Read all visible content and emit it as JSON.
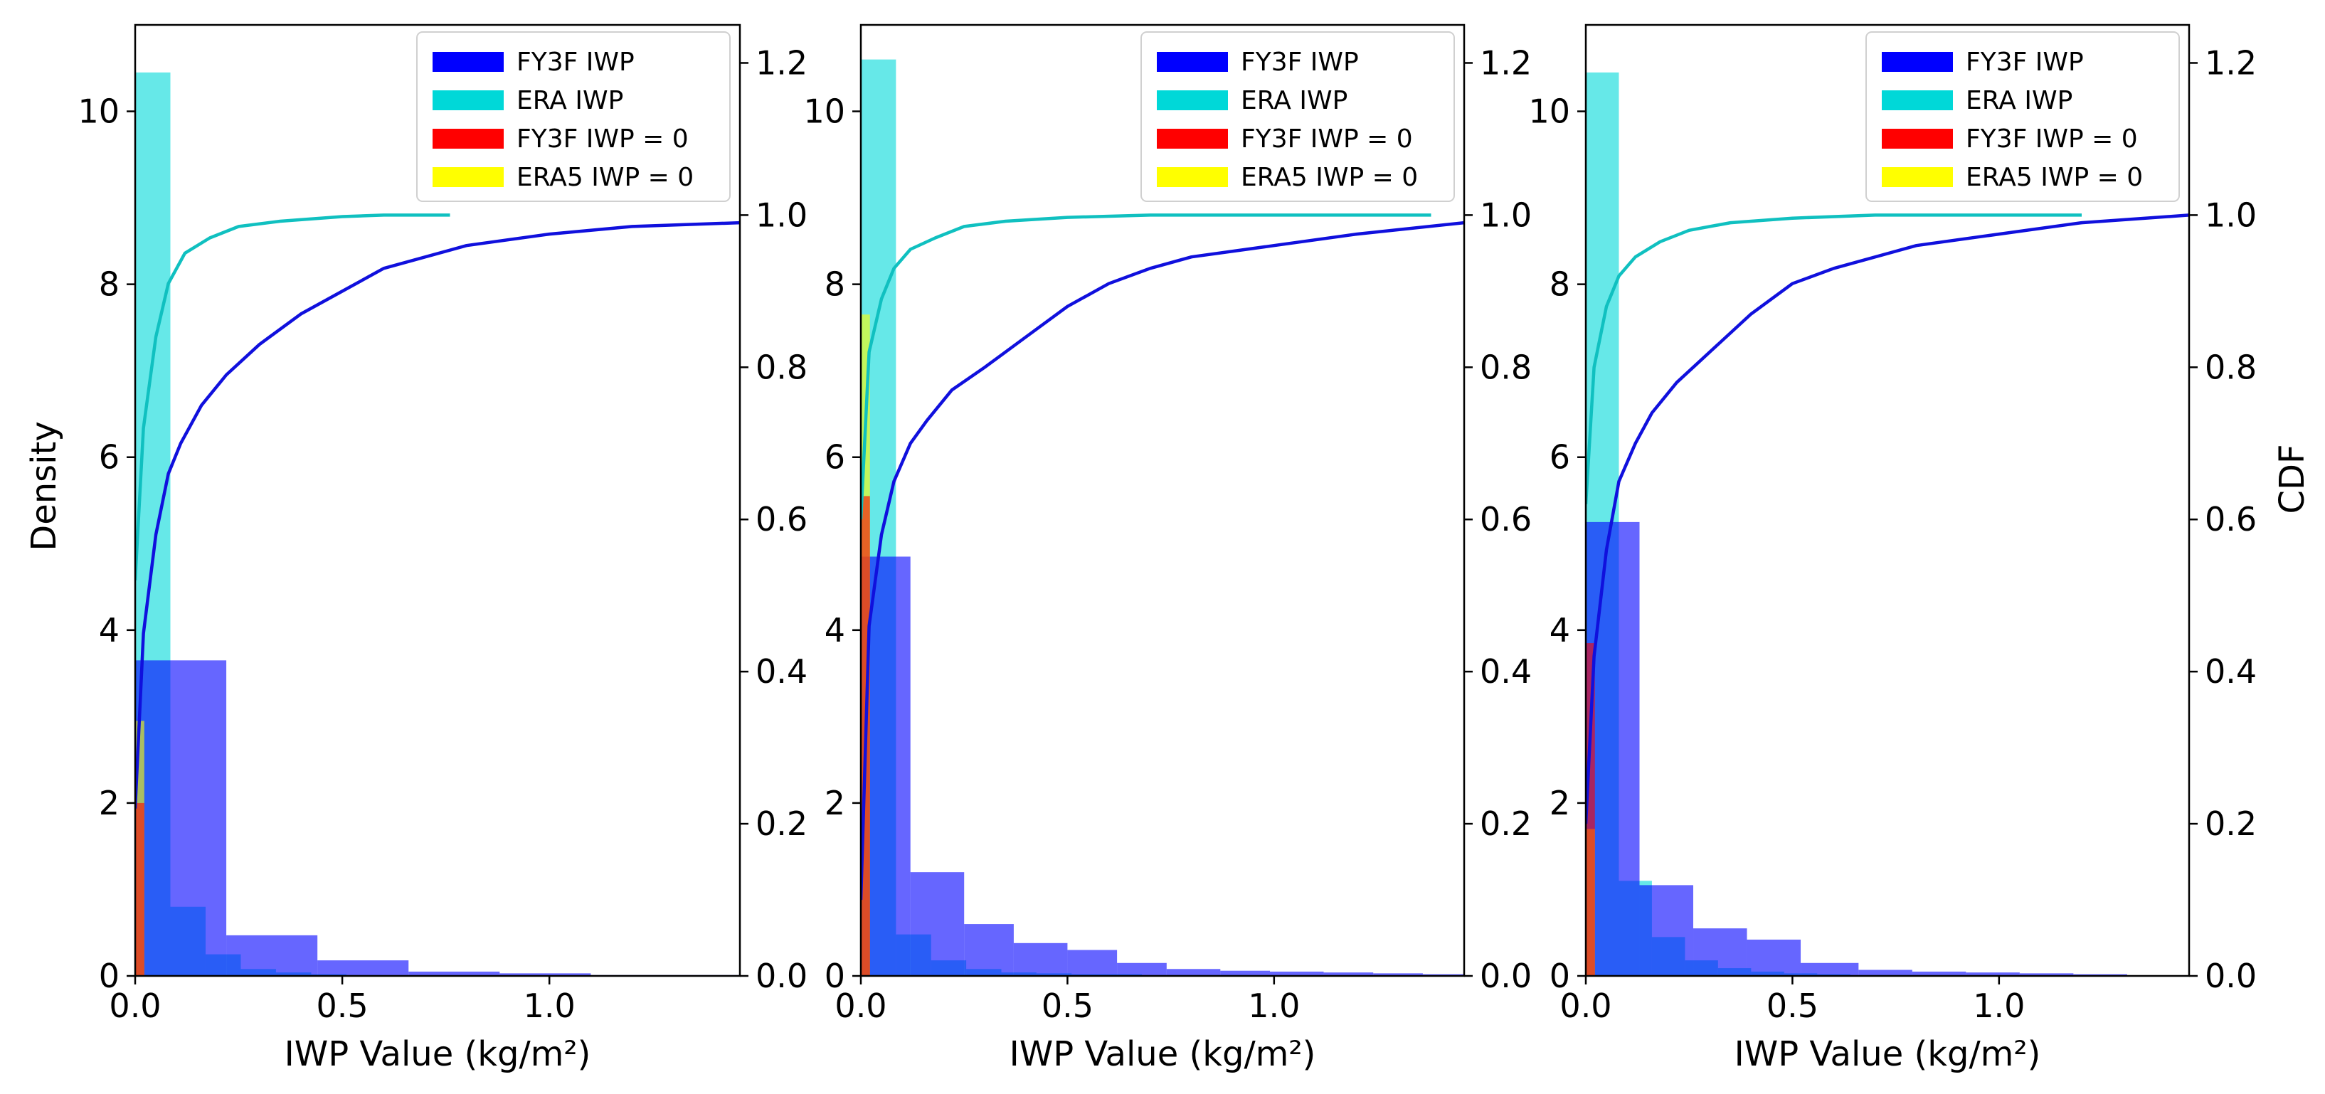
{
  "colors": {
    "fy3f": "#0000ff",
    "era": "#00d8d8",
    "fy3f_zero": "#ff0000",
    "era5_zero": "#ffff00",
    "fy3f_cdf": "#1010dd",
    "era_cdf": "#10c0c0"
  },
  "chart_data": [
    {
      "type": "bar",
      "title": "",
      "xlabel": "IWP Value (kg/m²)",
      "ylabel": "Density",
      "y2label": "",
      "xlim": [
        0,
        1.46
      ],
      "ylim": [
        0,
        11.0
      ],
      "y2lim": [
        0,
        1.25
      ],
      "xticks": [
        "0.0",
        "0.5",
        "1.0"
      ],
      "yticks": [
        "0",
        "2",
        "4",
        "6",
        "8",
        "10"
      ],
      "y2ticks": [
        "0.0",
        "0.2",
        "0.4",
        "0.6",
        "0.8",
        "1.0",
        "1.2"
      ],
      "legend": {
        "position": "top-right",
        "entries": [
          "FY3F IWP",
          "ERA IWP",
          "FY3F IWP = 0",
          "ERA5 IWP = 0"
        ]
      },
      "series": [
        {
          "name": "FY3F IWP",
          "kind": "histogram",
          "edges": [
            0.0,
            0.22,
            0.44,
            0.66,
            0.88,
            1.1,
            1.32,
            1.46
          ],
          "values": [
            3.65,
            0.47,
            0.18,
            0.05,
            0.03,
            0.01,
            0.01
          ]
        },
        {
          "name": "ERA IWP",
          "kind": "histogram",
          "edges": [
            0.0,
            0.085,
            0.17,
            0.255,
            0.34,
            0.425,
            0.51,
            0.595,
            0.68,
            0.765
          ],
          "values": [
            10.45,
            0.8,
            0.25,
            0.08,
            0.04,
            0.02,
            0.01,
            0.0,
            0.0
          ]
        },
        {
          "name": "FY3F IWP = 0",
          "kind": "zero-bar",
          "width": 0.022,
          "value": 2.0
        },
        {
          "name": "ERA5 IWP = 0",
          "kind": "zero-bar",
          "width": 0.022,
          "value": 2.95
        },
        {
          "name": "FY3F CDF",
          "kind": "cdf",
          "x": [
            0.0,
            0.02,
            0.05,
            0.08,
            0.11,
            0.16,
            0.22,
            0.3,
            0.4,
            0.5,
            0.6,
            0.8,
            1.0,
            1.2,
            1.46
          ],
          "y": [
            0.22,
            0.45,
            0.58,
            0.66,
            0.7,
            0.75,
            0.79,
            0.83,
            0.87,
            0.9,
            0.93,
            0.96,
            0.975,
            0.985,
            0.99
          ]
        },
        {
          "name": "ERA CDF",
          "kind": "cdf",
          "x": [
            0.0,
            0.02,
            0.05,
            0.08,
            0.12,
            0.18,
            0.25,
            0.35,
            0.5,
            0.6,
            0.76
          ],
          "y": [
            0.52,
            0.72,
            0.84,
            0.91,
            0.95,
            0.97,
            0.985,
            0.992,
            0.998,
            1.0,
            1.0
          ]
        }
      ]
    },
    {
      "type": "bar",
      "title": "",
      "xlabel": "IWP Value (kg/m²)",
      "ylabel": "",
      "y2label": "",
      "xlim": [
        0,
        1.46
      ],
      "ylim": [
        0,
        11.0
      ],
      "y2lim": [
        0,
        1.25
      ],
      "xticks": [
        "0.0",
        "0.5",
        "1.0"
      ],
      "yticks": [
        "0",
        "2",
        "4",
        "6",
        "8",
        "10"
      ],
      "y2ticks": [
        "0.0",
        "0.2",
        "0.4",
        "0.6",
        "0.8",
        "1.0",
        "1.2"
      ],
      "legend": {
        "position": "top-right",
        "entries": [
          "FY3F IWP",
          "ERA IWP",
          "FY3F IWP = 0",
          "ERA5 IWP = 0"
        ]
      },
      "series": [
        {
          "name": "FY3F IWP",
          "kind": "histogram",
          "edges": [
            0.0,
            0.12,
            0.25,
            0.37,
            0.5,
            0.62,
            0.74,
            0.87,
            0.99,
            1.12,
            1.24,
            1.36,
            1.46
          ],
          "values": [
            4.85,
            1.2,
            0.6,
            0.38,
            0.3,
            0.15,
            0.08,
            0.06,
            0.05,
            0.04,
            0.03,
            0.02
          ]
        },
        {
          "name": "ERA IWP",
          "kind": "histogram",
          "edges": [
            0.0,
            0.085,
            0.17,
            0.255,
            0.34,
            0.425,
            0.51,
            0.595,
            0.68,
            0.765,
            0.85,
            0.935,
            1.02,
            1.105,
            1.19,
            1.275,
            1.36
          ],
          "values": [
            10.6,
            0.48,
            0.18,
            0.08,
            0.04,
            0.03,
            0.02,
            0.02,
            0.01,
            0.01,
            0.01,
            0.0,
            0.0,
            0.0,
            0.0,
            0.0
          ]
        },
        {
          "name": "FY3F IWP = 0",
          "kind": "zero-bar",
          "width": 0.022,
          "value": 5.55
        },
        {
          "name": "ERA5 IWP = 0",
          "kind": "zero-bar",
          "width": 0.022,
          "value": 7.65
        },
        {
          "name": "FY3F CDF",
          "kind": "cdf",
          "x": [
            0.0,
            0.02,
            0.05,
            0.08,
            0.12,
            0.16,
            0.22,
            0.3,
            0.4,
            0.5,
            0.6,
            0.7,
            0.8,
            1.0,
            1.2,
            1.46
          ],
          "y": [
            0.1,
            0.46,
            0.58,
            0.65,
            0.7,
            0.73,
            0.77,
            0.8,
            0.84,
            0.88,
            0.91,
            0.93,
            0.945,
            0.96,
            0.975,
            0.99
          ]
        },
        {
          "name": "ERA CDF",
          "kind": "cdf",
          "x": [
            0.0,
            0.02,
            0.05,
            0.08,
            0.12,
            0.18,
            0.25,
            0.35,
            0.5,
            0.7,
            1.0,
            1.38
          ],
          "y": [
            0.6,
            0.82,
            0.89,
            0.93,
            0.955,
            0.97,
            0.985,
            0.992,
            0.997,
            1.0,
            1.0,
            1.0
          ]
        }
      ]
    },
    {
      "type": "bar",
      "title": "",
      "xlabel": "IWP Value (kg/m²)",
      "ylabel": "",
      "y2label": "CDF",
      "xlim": [
        0,
        1.46
      ],
      "ylim": [
        0,
        11.0
      ],
      "y2lim": [
        0,
        1.25
      ],
      "xticks": [
        "0.0",
        "0.5",
        "1.0"
      ],
      "yticks": [
        "0",
        "2",
        "4",
        "6",
        "8",
        "10"
      ],
      "y2ticks": [
        "0.0",
        "0.2",
        "0.4",
        "0.6",
        "0.8",
        "1.0",
        "1.2"
      ],
      "legend": {
        "position": "top-right",
        "entries": [
          "FY3F IWP",
          "ERA IWP",
          "FY3F IWP = 0",
          "ERA5 IWP = 0"
        ]
      },
      "series": [
        {
          "name": "FY3F IWP",
          "kind": "histogram",
          "edges": [
            0.0,
            0.13,
            0.26,
            0.39,
            0.52,
            0.66,
            0.79,
            0.92,
            1.05,
            1.18,
            1.31
          ],
          "values": [
            5.25,
            1.05,
            0.55,
            0.42,
            0.15,
            0.07,
            0.05,
            0.04,
            0.03,
            0.02
          ]
        },
        {
          "name": "ERA IWP",
          "kind": "histogram",
          "edges": [
            0.0,
            0.08,
            0.16,
            0.24,
            0.32,
            0.4,
            0.48,
            0.56,
            0.64,
            0.72,
            0.8,
            0.88,
            0.96,
            1.04,
            1.12,
            1.2
          ],
          "values": [
            10.45,
            1.1,
            0.45,
            0.18,
            0.09,
            0.05,
            0.03,
            0.02,
            0.01,
            0.01,
            0.0,
            0.0,
            0.0,
            0.0,
            0.0
          ]
        },
        {
          "name": "FY3F IWP = 0",
          "kind": "zero-bar",
          "width": 0.022,
          "value": 3.85
        },
        {
          "name": "ERA5 IWP = 0",
          "kind": "zero-bar",
          "width": 0.022,
          "value": 1.7
        },
        {
          "name": "FY3F CDF",
          "kind": "cdf",
          "x": [
            0.0,
            0.02,
            0.05,
            0.08,
            0.12,
            0.16,
            0.22,
            0.3,
            0.4,
            0.5,
            0.6,
            0.8,
            1.0,
            1.2,
            1.46
          ],
          "y": [
            0.2,
            0.42,
            0.56,
            0.65,
            0.7,
            0.74,
            0.78,
            0.82,
            0.87,
            0.91,
            0.93,
            0.96,
            0.975,
            0.99,
            1.0
          ]
        },
        {
          "name": "ERA CDF",
          "kind": "cdf",
          "x": [
            0.0,
            0.02,
            0.05,
            0.08,
            0.12,
            0.18,
            0.25,
            0.35,
            0.5,
            0.7,
            1.0,
            1.2
          ],
          "y": [
            0.62,
            0.8,
            0.88,
            0.92,
            0.945,
            0.965,
            0.98,
            0.99,
            0.996,
            1.0,
            1.0,
            1.0
          ]
        }
      ]
    }
  ]
}
